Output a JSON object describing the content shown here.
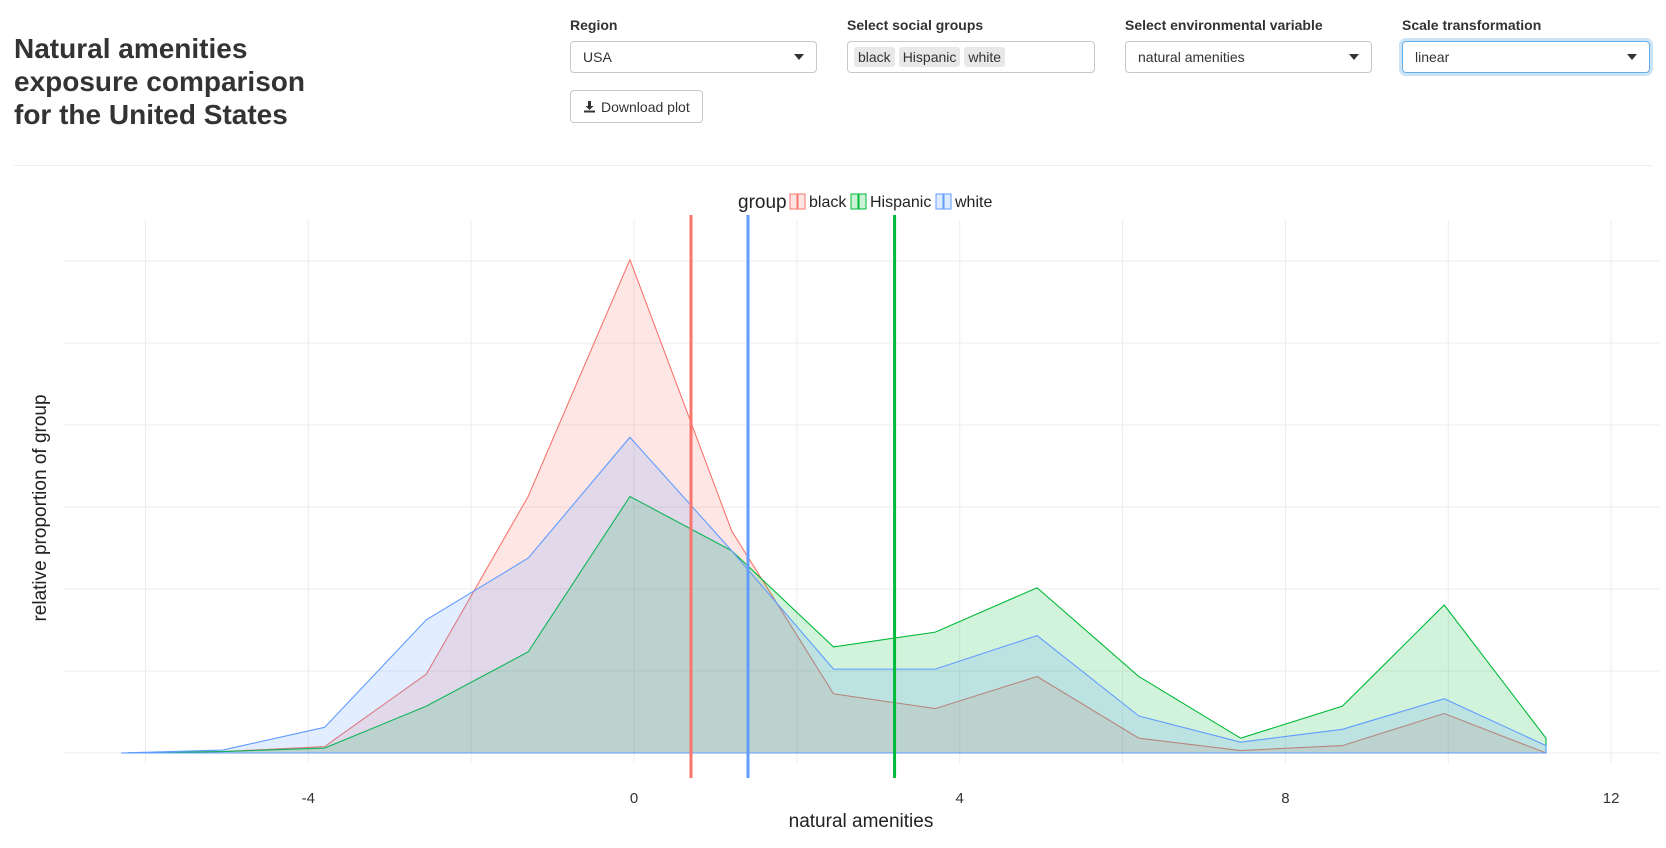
{
  "page": {
    "title": "Natural amenities exposure comparison for the United States"
  },
  "controls": {
    "region": {
      "label": "Region",
      "value": "USA"
    },
    "social_groups": {
      "label": "Select social groups",
      "values": [
        "black",
        "Hispanic",
        "white"
      ]
    },
    "env_variable": {
      "label": "Select environmental variable",
      "value": "natural amenities"
    },
    "scale": {
      "label": "Scale transformation",
      "value": "linear"
    },
    "download_label": "Download plot"
  },
  "colors": {
    "black": "#F8766D",
    "Hispanic": "#00BA38",
    "white": "#619CFF"
  },
  "chart_data": {
    "type": "area",
    "xlabel": "natural amenities",
    "ylabel": "relative proportion of group",
    "legend_title": "group",
    "legend_position": "top",
    "grid": true,
    "xlim": [
      -7,
      12.6
    ],
    "ylim": [
      0,
      1.05
    ],
    "xticks": [
      -4,
      0,
      4,
      8,
      12
    ],
    "x": [
      -6.3,
      -5.05,
      -3.8,
      -2.55,
      -1.3,
      -0.05,
      1.2,
      2.45,
      3.7,
      4.95,
      6.2,
      7.45,
      8.7,
      9.95,
      11.2
    ],
    "series": [
      {
        "name": "black",
        "values": [
          0,
          0.003,
          0.013,
          0.16,
          0.52,
          1.0,
          0.45,
          0.12,
          0.09,
          0.155,
          0.03,
          0.005,
          0.015,
          0.08,
          0.0
        ]
      },
      {
        "name": "Hispanic",
        "values": [
          0,
          0.003,
          0.01,
          0.095,
          0.205,
          0.52,
          0.41,
          0.215,
          0.245,
          0.335,
          0.155,
          0.03,
          0.095,
          0.3,
          0.03
        ]
      },
      {
        "name": "white",
        "values": [
          0,
          0.006,
          0.052,
          0.27,
          0.395,
          0.64,
          0.41,
          0.17,
          0.17,
          0.238,
          0.075,
          0.022,
          0.048,
          0.11,
          0.015
        ]
      }
    ],
    "means": [
      {
        "name": "black",
        "value": 0.7
      },
      {
        "name": "white",
        "value": 1.4
      },
      {
        "name": "Hispanic",
        "value": 3.2
      }
    ]
  }
}
